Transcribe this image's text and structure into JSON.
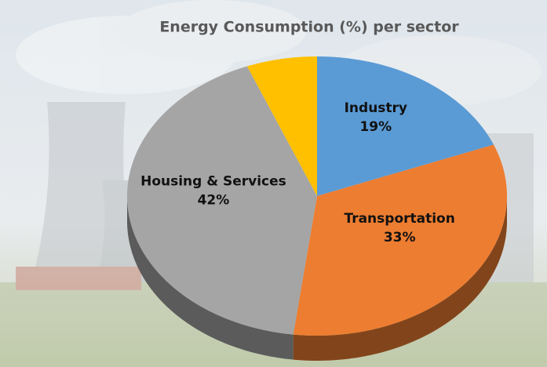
{
  "chart_data": {
    "type": "pie",
    "title": "Energy Consumption (%) per sector",
    "categories": [
      "Industry",
      "Transportation",
      "Housing & Services",
      null
    ],
    "values": [
      19,
      33,
      42,
      6
    ],
    "value_labels": [
      "19%",
      "33%",
      "42%",
      null
    ],
    "colors": [
      "#5b9bd5",
      "#ed7d31",
      "#a5a5a5",
      "#ffc000"
    ]
  }
}
